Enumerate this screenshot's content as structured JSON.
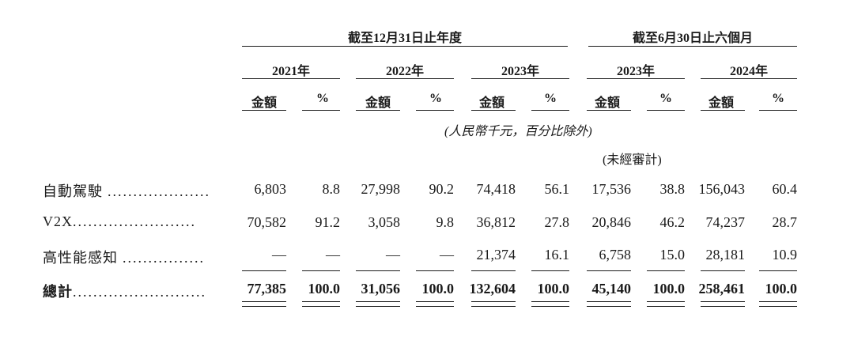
{
  "header": {
    "group_year_end": "截至12月31日止年度",
    "group_six_months": "截至6月30日止六個月",
    "years": [
      "2021年",
      "2022年",
      "2023年",
      "2023年",
      "2024年"
    ],
    "amount_label": "金額",
    "percent_label": "%",
    "currency_note": "(人民幣千元，百分比除外)",
    "unaudited_note": "(未經審計)"
  },
  "rows": [
    {
      "label": "自動駕駛",
      "cells": [
        "6,803",
        "8.8",
        "27,998",
        "90.2",
        "74,418",
        "56.1",
        "17,536",
        "38.8",
        "156,043",
        "60.4"
      ]
    },
    {
      "label": "V2X",
      "cells": [
        "70,582",
        "91.2",
        "3,058",
        "9.8",
        "36,812",
        "27.8",
        "20,846",
        "46.2",
        "74,237",
        "28.7"
      ]
    },
    {
      "label": "高性能感知",
      "cells": [
        "—",
        "—",
        "—",
        "—",
        "21,374",
        "16.1",
        "6,758",
        "15.0",
        "28,181",
        "10.9"
      ]
    },
    {
      "label": "總計",
      "cells": [
        "77,385",
        "100.0",
        "31,056",
        "100.0",
        "132,604",
        "100.0",
        "45,140",
        "100.0",
        "258,461",
        "100.0"
      ]
    }
  ]
}
